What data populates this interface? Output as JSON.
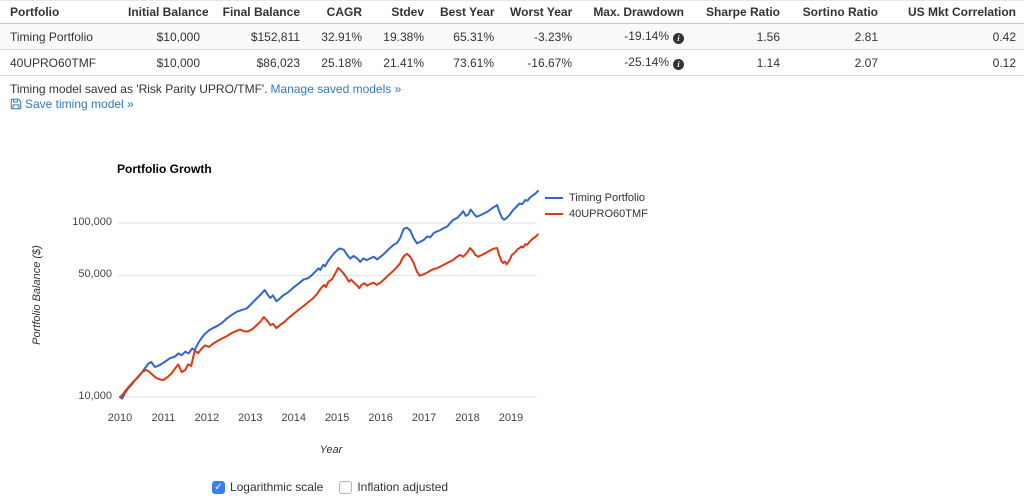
{
  "table": {
    "columns": [
      "Portfolio",
      "Initial Balance",
      "Final Balance",
      "CAGR",
      "Stdev",
      "Best Year",
      "Worst Year",
      "Max. Drawdown",
      "Sharpe Ratio",
      "Sortino Ratio",
      "US Mkt Correlation"
    ],
    "info_icon_column": 7,
    "info_icon_glyph": "i",
    "rows": [
      {
        "cells": [
          "Timing Portfolio",
          "$10,000",
          "$152,811",
          "32.91%",
          "19.38%",
          "65.31%",
          "-3.23%",
          "-19.14%",
          "1.56",
          "2.81",
          "0.42"
        ]
      },
      {
        "cells": [
          "40UPRO60TMF",
          "$10,000",
          "$86,023",
          "25.18%",
          "21.41%",
          "73.61%",
          "-16.67%",
          "-25.14%",
          "1.14",
          "2.07",
          "0.12"
        ]
      }
    ]
  },
  "notice": {
    "saved_text": "Timing model saved as 'Risk Parity UPRO/TMF'.",
    "manage_link": "Manage saved models »",
    "save_link": "Save timing model »"
  },
  "controls": {
    "logarithmic_scale": {
      "label": "Logarithmic scale",
      "checked": true
    },
    "inflation_adjusted": {
      "label": "Inflation adjusted",
      "checked": false
    }
  },
  "colors": {
    "link_blue": "#337ab7",
    "series_blue": "#3366cc",
    "series_red": "#dc3912",
    "checkbox_blue": "#3d7ef5",
    "grid_gray": "#e2e2e2",
    "row_stripe": "#f9f9f9"
  },
  "chart_data": {
    "type": "line",
    "title": "Portfolio Growth",
    "xlabel": "Year",
    "ylabel": "Portfolio Balance ($)",
    "log_scale": true,
    "grid": true,
    "legend_position": "top-right",
    "x_range": [
      2010,
      2019.62
    ],
    "ylim": [
      9500,
      160000
    ],
    "x_ticks": [
      2010,
      2011,
      2012,
      2013,
      2014,
      2015,
      2016,
      2017,
      2018,
      2019
    ],
    "y_ticks": [
      {
        "value": 10000,
        "label": "10,000"
      },
      {
        "value": 50000,
        "label": "50,000"
      },
      {
        "value": 100000,
        "label": "100,000"
      }
    ],
    "series": [
      {
        "name": "Timing Portfolio",
        "color": "#3366cc",
        "points": [
          [
            2010.0,
            10000
          ],
          [
            2010.05,
            9800
          ],
          [
            2010.12,
            10600
          ],
          [
            2010.2,
            11300
          ],
          [
            2010.28,
            11900
          ],
          [
            2010.35,
            12500
          ],
          [
            2010.43,
            13100
          ],
          [
            2010.5,
            13800
          ],
          [
            2010.58,
            14700
          ],
          [
            2010.65,
            15500
          ],
          [
            2010.72,
            15900
          ],
          [
            2010.8,
            14900
          ],
          [
            2010.88,
            15100
          ],
          [
            2010.96,
            15500
          ],
          [
            2011.04,
            16000
          ],
          [
            2011.15,
            16700
          ],
          [
            2011.27,
            17100
          ],
          [
            2011.34,
            17800
          ],
          [
            2011.42,
            17400
          ],
          [
            2011.5,
            18200
          ],
          [
            2011.58,
            17800
          ],
          [
            2011.66,
            19000
          ],
          [
            2011.72,
            18600
          ],
          [
            2011.8,
            20400
          ],
          [
            2011.88,
            21900
          ],
          [
            2011.96,
            23100
          ],
          [
            2012.05,
            24200
          ],
          [
            2012.15,
            25000
          ],
          [
            2012.25,
            25700
          ],
          [
            2012.35,
            26700
          ],
          [
            2012.46,
            28300
          ],
          [
            2012.57,
            29600
          ],
          [
            2012.69,
            30900
          ],
          [
            2012.8,
            31600
          ],
          [
            2012.92,
            32300
          ],
          [
            2013.0,
            33800
          ],
          [
            2013.11,
            36100
          ],
          [
            2013.23,
            38600
          ],
          [
            2013.33,
            41200
          ],
          [
            2013.4,
            38700
          ],
          [
            2013.46,
            37100
          ],
          [
            2013.52,
            38400
          ],
          [
            2013.6,
            35500
          ],
          [
            2013.69,
            37000
          ],
          [
            2013.77,
            38600
          ],
          [
            2013.85,
            39600
          ],
          [
            2013.93,
            41200
          ],
          [
            2014.0,
            42700
          ],
          [
            2014.11,
            44800
          ],
          [
            2014.22,
            47200
          ],
          [
            2014.34,
            48300
          ],
          [
            2014.42,
            50300
          ],
          [
            2014.5,
            52600
          ],
          [
            2014.57,
            54900
          ],
          [
            2014.61,
            53700
          ],
          [
            2014.68,
            57600
          ],
          [
            2014.72,
            56400
          ],
          [
            2014.79,
            60500
          ],
          [
            2014.88,
            64800
          ],
          [
            2014.95,
            67900
          ],
          [
            2015.05,
            71400
          ],
          [
            2015.15,
            70200
          ],
          [
            2015.23,
            65500
          ],
          [
            2015.3,
            62500
          ],
          [
            2015.38,
            64600
          ],
          [
            2015.46,
            62600
          ],
          [
            2015.53,
            59800
          ],
          [
            2015.6,
            62600
          ],
          [
            2015.68,
            61200
          ],
          [
            2015.76,
            62600
          ],
          [
            2015.84,
            64000
          ],
          [
            2015.92,
            61800
          ],
          [
            2016.0,
            64000
          ],
          [
            2016.08,
            66500
          ],
          [
            2016.19,
            70900
          ],
          [
            2016.3,
            74900
          ],
          [
            2016.38,
            77000
          ],
          [
            2016.45,
            82000
          ],
          [
            2016.53,
            92500
          ],
          [
            2016.6,
            94000
          ],
          [
            2016.68,
            90800
          ],
          [
            2016.76,
            81500
          ],
          [
            2016.84,
            76300
          ],
          [
            2016.92,
            78200
          ],
          [
            2017.0,
            80300
          ],
          [
            2017.07,
            83700
          ],
          [
            2017.14,
            82700
          ],
          [
            2017.22,
            87500
          ],
          [
            2017.3,
            89500
          ],
          [
            2017.38,
            91200
          ],
          [
            2017.45,
            93300
          ],
          [
            2017.53,
            95400
          ],
          [
            2017.6,
            99900
          ],
          [
            2017.68,
            104400
          ],
          [
            2017.76,
            106900
          ],
          [
            2017.84,
            112000
          ],
          [
            2017.9,
            116900
          ],
          [
            2017.96,
            109800
          ],
          [
            2018.02,
            112000
          ],
          [
            2018.07,
            119600
          ],
          [
            2018.13,
            114500
          ],
          [
            2018.2,
            108800
          ],
          [
            2018.25,
            109500
          ],
          [
            2018.33,
            111900
          ],
          [
            2018.41,
            114400
          ],
          [
            2018.48,
            117000
          ],
          [
            2018.56,
            121200
          ],
          [
            2018.64,
            124900
          ],
          [
            2018.68,
            126700
          ],
          [
            2018.73,
            117000
          ],
          [
            2018.79,
            107500
          ],
          [
            2018.84,
            104300
          ],
          [
            2018.9,
            106900
          ],
          [
            2018.97,
            111500
          ],
          [
            2019.05,
            118700
          ],
          [
            2019.12,
            123500
          ],
          [
            2019.2,
            129500
          ],
          [
            2019.26,
            128500
          ],
          [
            2019.33,
            135800
          ],
          [
            2019.38,
            134400
          ],
          [
            2019.44,
            140300
          ],
          [
            2019.5,
            143900
          ],
          [
            2019.56,
            147300
          ],
          [
            2019.62,
            152811
          ]
        ]
      },
      {
        "name": "40UPRO60TMF",
        "color": "#dc3912",
        "points": [
          [
            2010.0,
            10000
          ],
          [
            2010.06,
            10300
          ],
          [
            2010.13,
            10900
          ],
          [
            2010.21,
            11500
          ],
          [
            2010.29,
            12100
          ],
          [
            2010.37,
            12700
          ],
          [
            2010.45,
            13400
          ],
          [
            2010.53,
            14000
          ],
          [
            2010.6,
            14300
          ],
          [
            2010.67,
            14000
          ],
          [
            2010.75,
            13400
          ],
          [
            2010.83,
            12900
          ],
          [
            2010.92,
            12600
          ],
          [
            2011.0,
            12500
          ],
          [
            2011.09,
            13000
          ],
          [
            2011.18,
            13600
          ],
          [
            2011.27,
            14600
          ],
          [
            2011.34,
            15400
          ],
          [
            2011.42,
            13900
          ],
          [
            2011.5,
            14300
          ],
          [
            2011.57,
            15400
          ],
          [
            2011.64,
            15100
          ],
          [
            2011.72,
            18400
          ],
          [
            2011.8,
            17900
          ],
          [
            2011.88,
            19000
          ],
          [
            2011.96,
            19800
          ],
          [
            2012.05,
            19400
          ],
          [
            2012.15,
            20300
          ],
          [
            2012.25,
            21000
          ],
          [
            2012.35,
            21700
          ],
          [
            2012.46,
            22400
          ],
          [
            2012.57,
            23300
          ],
          [
            2012.69,
            24000
          ],
          [
            2012.76,
            24400
          ],
          [
            2012.85,
            23900
          ],
          [
            2012.95,
            23800
          ],
          [
            2013.05,
            24600
          ],
          [
            2013.15,
            25900
          ],
          [
            2013.23,
            27100
          ],
          [
            2013.31,
            28800
          ],
          [
            2013.39,
            27400
          ],
          [
            2013.46,
            25900
          ],
          [
            2013.52,
            26300
          ],
          [
            2013.6,
            24900
          ],
          [
            2013.69,
            26000
          ],
          [
            2013.77,
            26800
          ],
          [
            2013.87,
            28300
          ],
          [
            2013.95,
            29400
          ],
          [
            2014.05,
            30800
          ],
          [
            2014.15,
            32300
          ],
          [
            2014.25,
            33700
          ],
          [
            2014.35,
            35400
          ],
          [
            2014.45,
            37000
          ],
          [
            2014.53,
            39000
          ],
          [
            2014.6,
            41300
          ],
          [
            2014.65,
            42800
          ],
          [
            2014.7,
            44100
          ],
          [
            2014.74,
            42900
          ],
          [
            2014.8,
            46000
          ],
          [
            2014.88,
            47500
          ],
          [
            2014.95,
            51000
          ],
          [
            2015.02,
            55200
          ],
          [
            2015.08,
            53700
          ],
          [
            2015.15,
            51100
          ],
          [
            2015.22,
            48200
          ],
          [
            2015.27,
            46000
          ],
          [
            2015.32,
            47200
          ],
          [
            2015.4,
            45100
          ],
          [
            2015.47,
            43500
          ],
          [
            2015.51,
            42200
          ],
          [
            2015.56,
            44100
          ],
          [
            2015.62,
            45100
          ],
          [
            2015.69,
            43600
          ],
          [
            2015.76,
            44700
          ],
          [
            2015.84,
            45400
          ],
          [
            2015.91,
            44100
          ],
          [
            2016.0,
            45500
          ],
          [
            2016.08,
            47400
          ],
          [
            2016.19,
            50400
          ],
          [
            2016.3,
            53300
          ],
          [
            2016.38,
            56000
          ],
          [
            2016.45,
            58700
          ],
          [
            2016.5,
            62800
          ],
          [
            2016.56,
            65500
          ],
          [
            2016.61,
            66400
          ],
          [
            2016.68,
            64000
          ],
          [
            2016.76,
            58800
          ],
          [
            2016.84,
            52200
          ],
          [
            2016.9,
            49800
          ],
          [
            2016.98,
            50600
          ],
          [
            2017.07,
            51800
          ],
          [
            2017.15,
            53300
          ],
          [
            2017.22,
            54400
          ],
          [
            2017.3,
            54900
          ],
          [
            2017.38,
            56300
          ],
          [
            2017.45,
            57400
          ],
          [
            2017.53,
            58900
          ],
          [
            2017.6,
            60000
          ],
          [
            2017.68,
            61600
          ],
          [
            2017.76,
            64000
          ],
          [
            2017.83,
            65600
          ],
          [
            2017.9,
            64000
          ],
          [
            2017.98,
            67100
          ],
          [
            2018.06,
            71700
          ],
          [
            2018.13,
            68700
          ],
          [
            2018.18,
            65600
          ],
          [
            2018.25,
            64000
          ],
          [
            2018.33,
            65600
          ],
          [
            2018.41,
            67100
          ],
          [
            2018.48,
            68700
          ],
          [
            2018.56,
            70400
          ],
          [
            2018.62,
            71500
          ],
          [
            2018.68,
            71700
          ],
          [
            2018.73,
            65200
          ],
          [
            2018.78,
            60500
          ],
          [
            2018.82,
            59000
          ],
          [
            2018.86,
            60100
          ],
          [
            2018.9,
            57900
          ],
          [
            2018.96,
            60600
          ],
          [
            2019.02,
            65500
          ],
          [
            2019.08,
            67200
          ],
          [
            2019.15,
            70500
          ],
          [
            2019.2,
            71800
          ],
          [
            2019.24,
            73300
          ],
          [
            2019.28,
            72400
          ],
          [
            2019.33,
            75500
          ],
          [
            2019.37,
            74800
          ],
          [
            2019.42,
            77600
          ],
          [
            2019.5,
            81400
          ],
          [
            2019.56,
            83100
          ],
          [
            2019.62,
            86023
          ]
        ]
      }
    ]
  }
}
